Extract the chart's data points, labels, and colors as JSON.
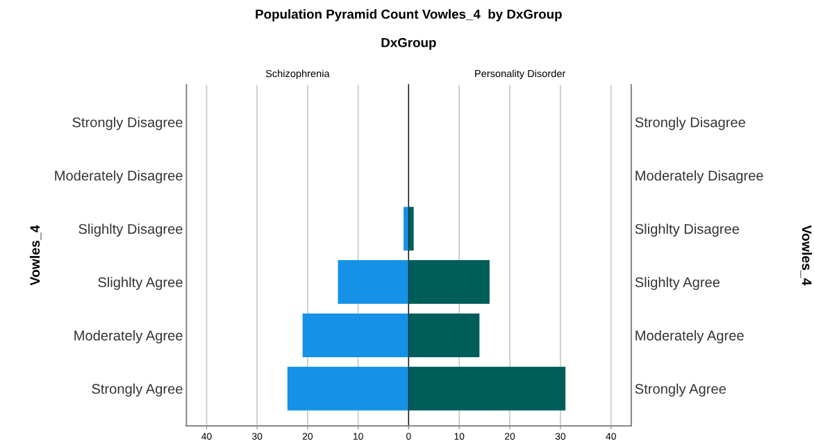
{
  "chart_data": [
    {
      "type": "bar",
      "orientation": "horizontal",
      "title": "Population Pyramid Count Vowles_4  by DxGroup",
      "subtitle": "DxGroup",
      "ylabel": "Vowles_4",
      "categories": [
        "Strongly Disagree",
        "Moderately Disagree",
        "Slighlty Disagree",
        "Slighlty Agree",
        "Moderately Agree",
        "Strongly Agree"
      ],
      "series": [
        {
          "name": "Schizophrenia",
          "color": "#1592e6",
          "values": [
            0,
            0,
            1,
            14,
            21,
            24
          ]
        }
      ],
      "xlim": [
        44,
        0
      ],
      "xticks": [
        40,
        30,
        20,
        10,
        {
          "value": 0,
          "label": null
        }
      ],
      "grid": "x"
    },
    {
      "type": "bar",
      "orientation": "horizontal",
      "y2label": "Vowles_4",
      "categories": [
        "Strongly Disagree",
        "Moderately Disagree",
        "Slighlty Disagree",
        "Slighlty Agree",
        "Moderately Agree",
        "Strongly Agree"
      ],
      "series": [
        {
          "name": "Personality Disorder",
          "color": "#005e5a",
          "values": [
            0,
            0,
            1,
            16,
            14,
            31
          ]
        }
      ],
      "xlim": [
        0,
        44
      ],
      "xticks": [
        0,
        10,
        20,
        30,
        40
      ],
      "grid": "x"
    }
  ]
}
